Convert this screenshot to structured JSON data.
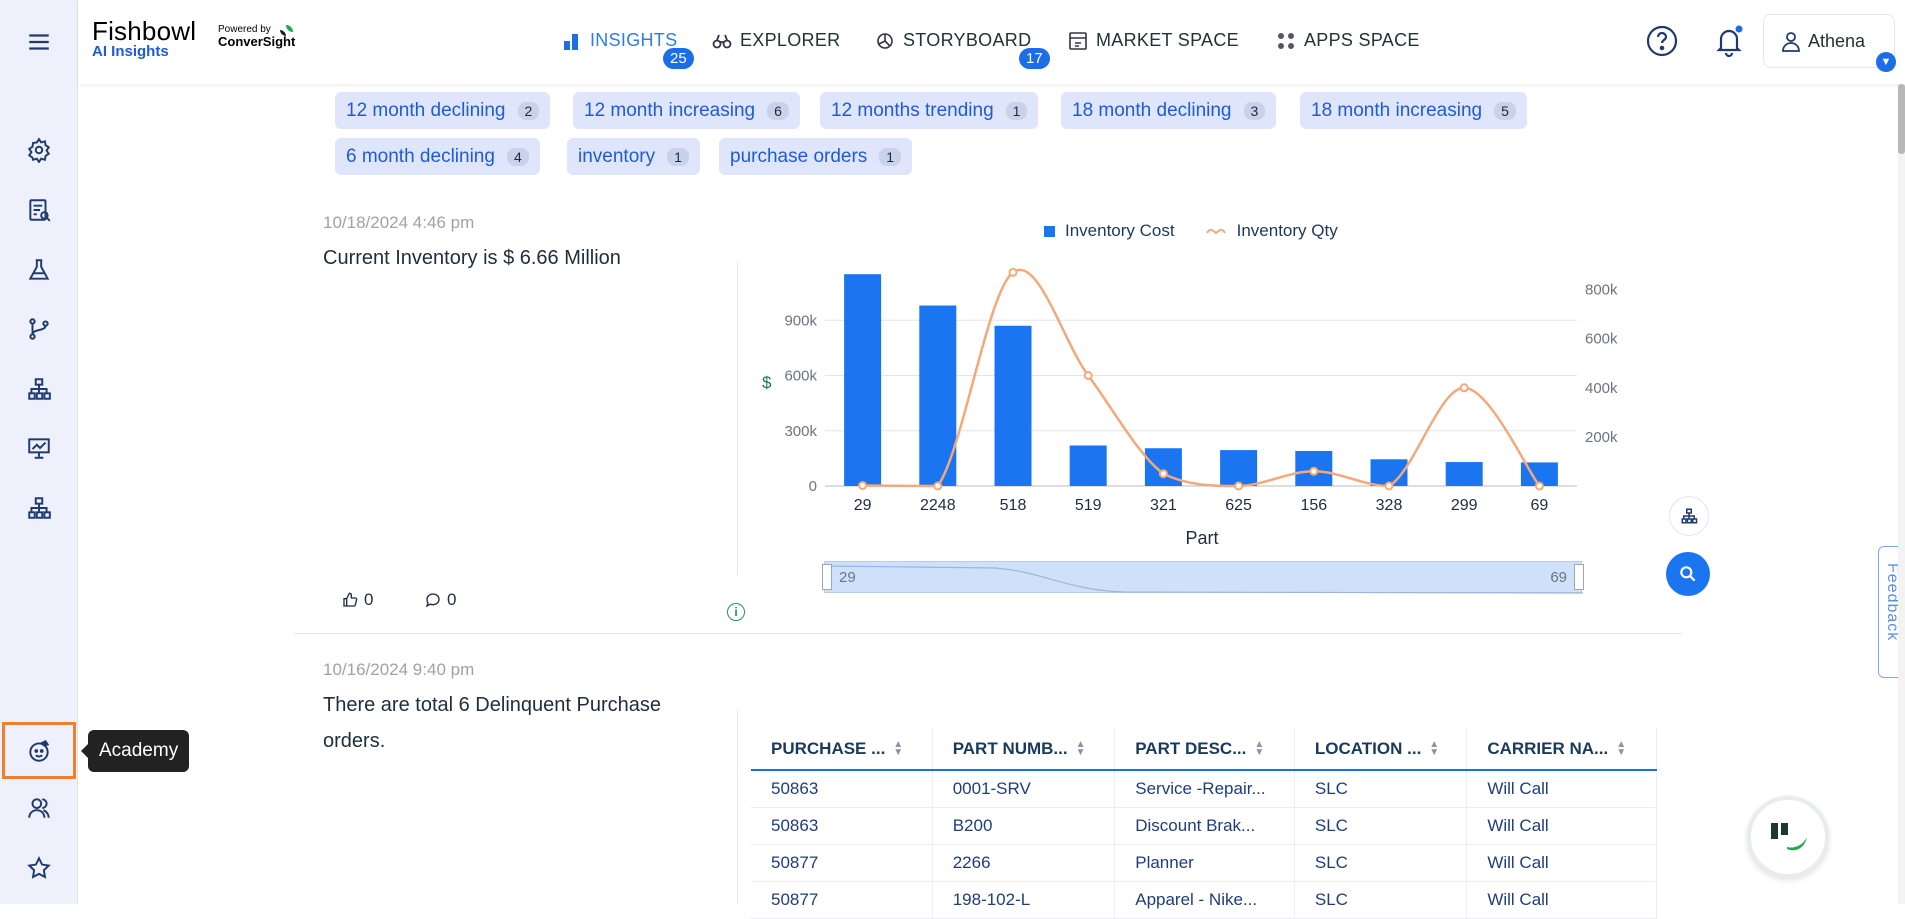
{
  "app": {
    "logo_title": "Fishbowl",
    "logo_subtitle": "AI Insights",
    "powered_by": "Powered by",
    "powered_brand": "ConverSight"
  },
  "nav": [
    {
      "label": "INSIGHTS",
      "badge": "25",
      "icon": "bar-chart-icon"
    },
    {
      "label": "EXPLORER",
      "badge": "",
      "icon": "binoculars-icon"
    },
    {
      "label": "STORYBOARD",
      "badge": "17",
      "icon": "pie-icon"
    },
    {
      "label": "MARKET SPACE",
      "badge": "",
      "icon": "market-icon"
    },
    {
      "label": "APPS SPACE",
      "badge": "",
      "icon": "apps-grid-icon"
    }
  ],
  "user": {
    "name": "Athena"
  },
  "sidebar": {
    "tooltip": "Academy"
  },
  "tags": [
    {
      "label": "12 month declining",
      "count": "2"
    },
    {
      "label": "12 month increasing",
      "count": "6"
    },
    {
      "label": "12 months trending",
      "count": "1"
    },
    {
      "label": "18 month declining",
      "count": "3"
    },
    {
      "label": "18 month increasing",
      "count": "5"
    },
    {
      "label": "6 month declining",
      "count": "4"
    },
    {
      "label": "inventory",
      "count": "1"
    },
    {
      "label": "purchase orders",
      "count": "1"
    }
  ],
  "insight1": {
    "date": "10/18/2024 4:46 pm",
    "headline": "Current Inventory is $ 6.66 Million",
    "likes": "0",
    "comments": "0"
  },
  "chart_data": {
    "type": "bar",
    "title": "",
    "categories": [
      "29",
      "2248",
      "518",
      "519",
      "321",
      "625",
      "156",
      "328",
      "299",
      "69"
    ],
    "series": [
      {
        "name": "Inventory Cost",
        "type": "bar",
        "axis": "left",
        "color": "#1b74f0",
        "values": [
          1150000,
          980000,
          870000,
          220000,
          205000,
          195000,
          190000,
          145000,
          130000,
          128000
        ]
      },
      {
        "name": "Inventory Qty",
        "type": "line",
        "axis": "right",
        "color": "#f5a878",
        "values": [
          2000,
          0,
          870000,
          450000,
          50000,
          0,
          60000,
          0,
          400000,
          0
        ]
      }
    ],
    "xlabel": "Part",
    "ylabel": "$",
    "ylim": [
      0,
      1200000
    ],
    "y_ticks": [
      "0",
      "300k",
      "600k",
      "900k"
    ],
    "y2lim": [
      0,
      900000
    ],
    "y2_ticks": [
      "200k",
      "400k",
      "600k",
      "800k"
    ],
    "slider": {
      "start": "29",
      "end": "69"
    }
  },
  "insight2": {
    "date": "10/16/2024 9:40 pm",
    "headline": "There are total 6 Delinquent Purchase orders.",
    "columns": [
      "PURCHASE ...",
      "PART NUMB...",
      "PART DESC...",
      "LOCATION ...",
      "CARRIER NA..."
    ],
    "rows": [
      [
        "50863",
        "0001-SRV",
        "Service -Repair...",
        "SLC",
        "Will Call"
      ],
      [
        "50863",
        "B200",
        "Discount Brak...",
        "SLC",
        "Will Call"
      ],
      [
        "50877",
        "2266",
        "Planner",
        "SLC",
        "Will Call"
      ],
      [
        "50877",
        "198-102-L",
        "Apparel - Nike...",
        "SLC",
        "Will Call"
      ]
    ]
  },
  "feedback_label": "Feedback",
  "colors": {
    "accent": "#1b6ee8",
    "highlight": "#f07f2e",
    "tag_bg": "#dfe6fb"
  }
}
